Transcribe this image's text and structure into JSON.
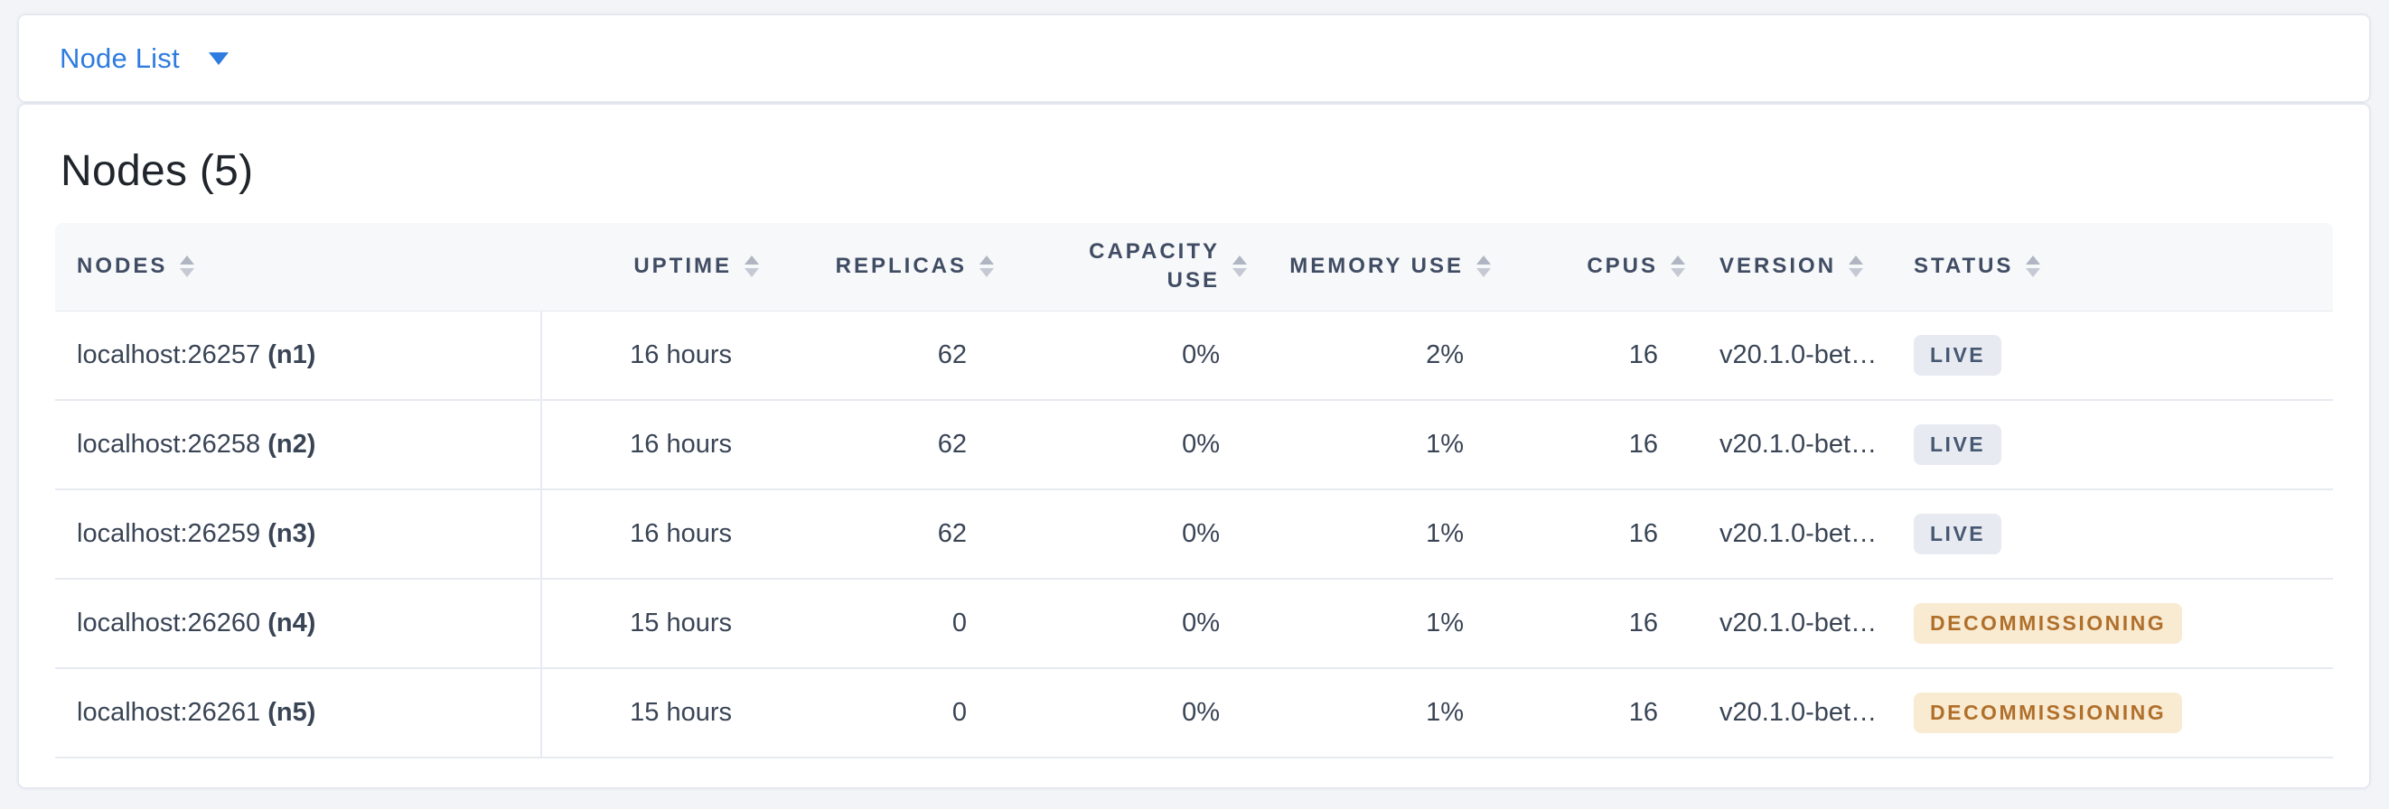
{
  "topbar": {
    "title": "Node List"
  },
  "main": {
    "heading": "Nodes (5)",
    "table": {
      "columns": [
        {
          "key": "nodes",
          "label": "NODES",
          "align": "left"
        },
        {
          "key": "uptime",
          "label": "UPTIME",
          "align": "right"
        },
        {
          "key": "replicas",
          "label": "REPLICAS",
          "align": "right"
        },
        {
          "key": "capacity_use",
          "label": "CAPACITY USE",
          "align": "right",
          "wrap": true
        },
        {
          "key": "memory_use",
          "label": "MEMORY USE",
          "align": "right"
        },
        {
          "key": "cpus",
          "label": "CPUS",
          "align": "right"
        },
        {
          "key": "version",
          "label": "VERSION",
          "align": "left"
        },
        {
          "key": "status",
          "label": "STATUS",
          "align": "left"
        }
      ],
      "rows": [
        {
          "nodes": "localhost:26257",
          "node_id": "(n1)",
          "uptime": "16 hours",
          "replicas": "62",
          "capacity_use": "0%",
          "memory_use": "2%",
          "cpus": "16",
          "version": "v20.1.0-bet…",
          "status": "LIVE"
        },
        {
          "nodes": "localhost:26258",
          "node_id": "(n2)",
          "uptime": "16 hours",
          "replicas": "62",
          "capacity_use": "0%",
          "memory_use": "1%",
          "cpus": "16",
          "version": "v20.1.0-bet…",
          "status": "LIVE"
        },
        {
          "nodes": "localhost:26259",
          "node_id": "(n3)",
          "uptime": "16 hours",
          "replicas": "62",
          "capacity_use": "0%",
          "memory_use": "1%",
          "cpus": "16",
          "version": "v20.1.0-bet…",
          "status": "LIVE"
        },
        {
          "nodes": "localhost:26260",
          "node_id": "(n4)",
          "uptime": "15 hours",
          "replicas": "0",
          "capacity_use": "0%",
          "memory_use": "1%",
          "cpus": "16",
          "version": "v20.1.0-bet…",
          "status": "DECOMMISSIONING"
        },
        {
          "nodes": "localhost:26261",
          "node_id": "(n5)",
          "uptime": "15 hours",
          "replicas": "0",
          "capacity_use": "0%",
          "memory_use": "1%",
          "cpus": "16",
          "version": "v20.1.0-bet…",
          "status": "DECOMMISSIONING"
        }
      ],
      "status_styles": {
        "LIVE": {
          "bg": "#E7EAF1",
          "color": "#475872"
        },
        "DECOMMISSIONING": {
          "bg": "#F9EBD1",
          "color": "#B06F2B"
        }
      }
    }
  },
  "colors": {
    "accent_blue": "#2F7CE0",
    "page_background": "#F2F4F8",
    "header_row_background": "#F7F8FA",
    "row_border": "#E7EAF0",
    "header_text": "#3F4C63",
    "body_text": "#394455"
  }
}
